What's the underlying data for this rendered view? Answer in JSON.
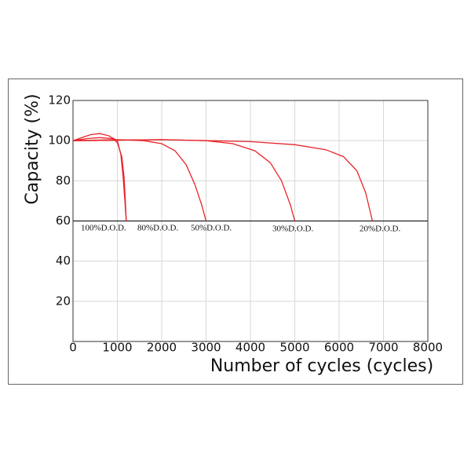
{
  "chart_data": {
    "type": "line",
    "x_label": "Number of cycles (cycles)",
    "y_label": "Capacity  (%)",
    "xlim": [
      0,
      8000
    ],
    "xticks": [
      0,
      1000,
      2000,
      3000,
      4000,
      5000,
      6000,
      7000,
      8000
    ],
    "ylim": [
      0,
      120
    ],
    "yticks": [
      20,
      40,
      60,
      80,
      100,
      120
    ],
    "grid": true,
    "series": [
      {
        "name": "100%D.O.D.",
        "color": "#e8242a",
        "x": [
          0,
          200,
          400,
          600,
          800,
          1000,
          1080,
          1130,
          1170,
          1200
        ],
        "values": [
          100,
          101.5,
          103,
          103.5,
          102.5,
          100,
          93,
          82,
          70,
          60
        ]
      },
      {
        "name": "80%D.O.D.",
        "color": "#e8242a",
        "x": [
          0,
          300,
          600,
          900,
          1000,
          1100,
          1150,
          1180,
          1200
        ],
        "values": [
          100,
          101,
          101.5,
          101,
          99,
          92,
          82,
          70,
          60
        ]
      },
      {
        "name": "50%D.O.D.",
        "color": "#e8242a",
        "x": [
          0,
          1000,
          1600,
          2000,
          2300,
          2550,
          2750,
          2900,
          3000
        ],
        "values": [
          100,
          100.5,
          100,
          98.5,
          95,
          88,
          78,
          68,
          60
        ]
      },
      {
        "name": "30%D.O.D.",
        "color": "#e8242a",
        "x": [
          0,
          2000,
          3000,
          3600,
          4100,
          4450,
          4700,
          4900,
          5000
        ],
        "values": [
          100,
          100.5,
          100,
          98.5,
          95,
          89,
          80,
          68,
          60
        ]
      },
      {
        "name": "20%D.O.D.",
        "color": "#e8242a",
        "x": [
          0,
          2000,
          4000,
          5000,
          5700,
          6100,
          6400,
          6600,
          6750
        ],
        "values": [
          100,
          100.5,
          99.5,
          98,
          95.5,
          92,
          85,
          74,
          60
        ]
      }
    ]
  }
}
